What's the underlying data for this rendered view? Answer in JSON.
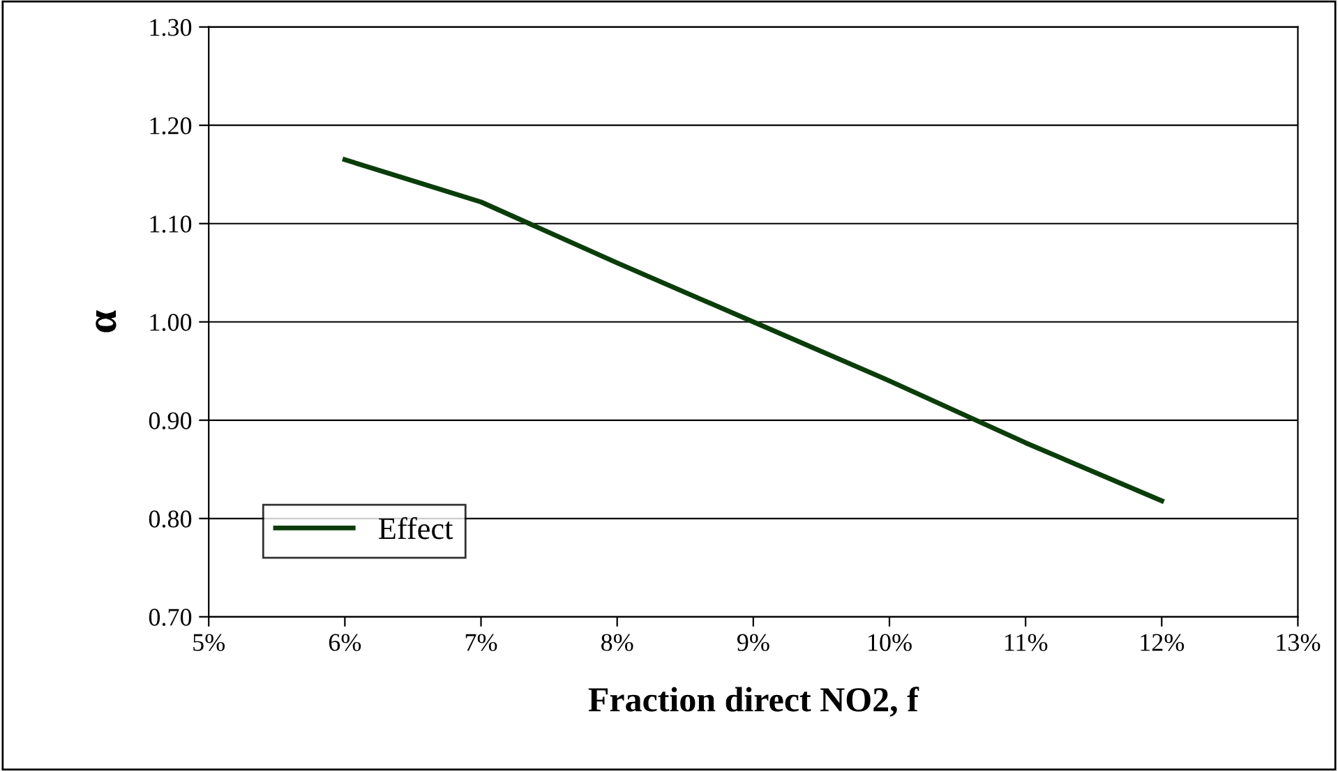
{
  "chart_data": {
    "type": "line",
    "xlabel": "Fraction direct NO2, f",
    "ylabel": "α",
    "x": [
      6,
      7,
      8,
      9,
      10,
      11,
      12
    ],
    "series": [
      {
        "name": "Effect",
        "color": "#0b3d0b",
        "values": [
          1.165,
          1.122,
          1.06,
          1.0,
          0.94,
          0.877,
          0.818
        ]
      }
    ],
    "xlim": [
      5,
      13
    ],
    "xticks": [
      {
        "value": 5,
        "label": "5%"
      },
      {
        "value": 6,
        "label": "6%"
      },
      {
        "value": 7,
        "label": "7%"
      },
      {
        "value": 8,
        "label": "8%"
      },
      {
        "value": 9,
        "label": "9%"
      },
      {
        "value": 10,
        "label": "10%"
      },
      {
        "value": 11,
        "label": "11%"
      },
      {
        "value": 12,
        "label": "12%"
      },
      {
        "value": 13,
        "label": "13%"
      }
    ],
    "ylim": [
      0.7,
      1.3
    ],
    "yticks": [
      {
        "value": 0.7,
        "label": "0.70"
      },
      {
        "value": 0.8,
        "label": "0.80"
      },
      {
        "value": 0.9,
        "label": "0.90"
      },
      {
        "value": 1.0,
        "label": "1.00"
      },
      {
        "value": 1.1,
        "label": "1.10"
      },
      {
        "value": 1.2,
        "label": "1.20"
      },
      {
        "value": 1.3,
        "label": "1.30"
      }
    ],
    "grid": "y",
    "legend": "bottom left",
    "marker": "none",
    "line_style": "solid"
  }
}
